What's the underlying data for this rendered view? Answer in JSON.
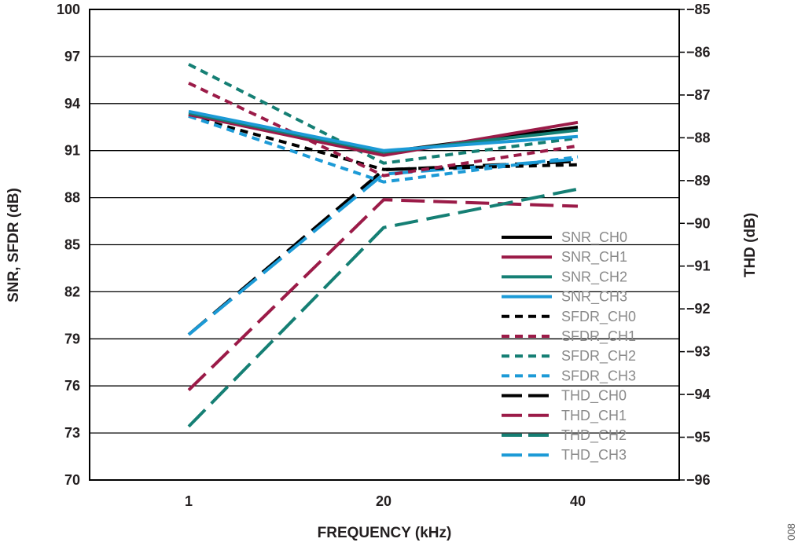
{
  "chart_data": {
    "type": "line",
    "xlabel": "FREQUENCY (kHz)",
    "ylabel_left": "SNR, SFDR (dB)",
    "ylabel_right": "THD (dB)",
    "categories": [
      "1",
      "20",
      "40"
    ],
    "ylim_left": [
      70,
      100
    ],
    "yticks_left": [
      70,
      73,
      76,
      79,
      82,
      85,
      88,
      91,
      94,
      97,
      100
    ],
    "ylim_right": [
      -96,
      -85
    ],
    "yticks_right": [
      -96,
      -95,
      -94,
      -93,
      -92,
      -91,
      -90,
      -89,
      -88,
      -87,
      -86,
      -85
    ],
    "grid": "horizontal",
    "legend_position": "bottom-right",
    "figure_id": "008",
    "colors": {
      "CH0": "#000000",
      "CH1": "#9b1b48",
      "CH2": "#157f74",
      "CH3": "#1c9ad6"
    },
    "series": [
      {
        "name": "SNR_CH0",
        "axis": "left",
        "style": "solid",
        "channel": "CH0",
        "values": [
          93.3,
          90.9,
          92.5
        ]
      },
      {
        "name": "SNR_CH1",
        "axis": "left",
        "style": "solid",
        "channel": "CH1",
        "values": [
          93.3,
          90.7,
          92.8
        ]
      },
      {
        "name": "SNR_CH2",
        "axis": "left",
        "style": "solid",
        "channel": "CH2",
        "values": [
          93.4,
          90.9,
          92.3
        ]
      },
      {
        "name": "SNR_CH3",
        "axis": "left",
        "style": "solid",
        "channel": "CH3",
        "values": [
          93.5,
          91.0,
          91.9
        ]
      },
      {
        "name": "SFDR_CH0",
        "axis": "left",
        "style": "dotted",
        "channel": "CH0",
        "values": [
          93.2,
          89.8,
          90.1
        ]
      },
      {
        "name": "SFDR_CH1",
        "axis": "left",
        "style": "dotted",
        "channel": "CH1",
        "values": [
          95.3,
          89.4,
          91.3
        ]
      },
      {
        "name": "SFDR_CH2",
        "axis": "left",
        "style": "dotted",
        "channel": "CH2",
        "values": [
          96.5,
          90.2,
          91.8
        ]
      },
      {
        "name": "SFDR_CH3",
        "axis": "left",
        "style": "dotted",
        "channel": "CH3",
        "values": [
          93.2,
          89.0,
          90.6
        ]
      },
      {
        "name": "THD_CH0",
        "axis": "right",
        "style": "dashed",
        "channel": "CH0",
        "values": [
          -92.6,
          -88.75,
          -88.55
        ]
      },
      {
        "name": "THD_CH1",
        "axis": "right",
        "style": "dashed",
        "channel": "CH1",
        "values": [
          -93.9,
          -89.45,
          -89.6
        ]
      },
      {
        "name": "THD_CH2",
        "axis": "right",
        "style": "dashed",
        "channel": "CH2",
        "values": [
          -94.75,
          -90.1,
          -89.2
        ]
      },
      {
        "name": "THD_CH3",
        "axis": "right",
        "style": "dashed",
        "channel": "CH3",
        "values": [
          -92.6,
          -88.85,
          -88.5
        ]
      }
    ]
  }
}
